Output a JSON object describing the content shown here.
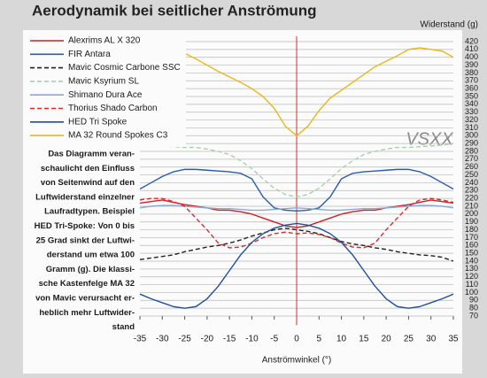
{
  "chart_data": {
    "type": "line",
    "title": "Aerodynamik bei seitlicher Anströmung",
    "y_label": "Widerstand (g)",
    "x_label": "Anströmwinkel (°)",
    "stamp": "VSXX",
    "annotation": [
      "Das Diagramm veran-",
      "schaulicht den Einfluss",
      "von Seitenwind auf den",
      "Luftwiderstand einzelner",
      "Laufradtypen. Beispiel",
      "HED Tri-Spoke: Von 0 bis",
      "25 Grad sinkt der Luftwi-",
      "derstand um etwa 100",
      "Gramm (g). Die klassi-",
      "sche Kastenfelge MA 32",
      "von Mavic verursacht er-",
      "heblich mehr Luftwider-",
      "stand"
    ],
    "x": [
      -35,
      -32.5,
      -30,
      -27.5,
      -25,
      -22.5,
      -20,
      -17.5,
      -15,
      -12.5,
      -10,
      -7.5,
      -5,
      -2.5,
      0,
      2.5,
      5,
      7.5,
      10,
      12.5,
      15,
      17.5,
      20,
      22.5,
      25,
      27.5,
      30,
      32.5,
      35
    ],
    "xlim": [
      -35,
      35
    ],
    "xticks": [
      -35,
      -30,
      -25,
      -20,
      -15,
      -10,
      -5,
      0,
      5,
      10,
      15,
      20,
      25,
      30,
      35
    ],
    "ylim": [
      70,
      420
    ],
    "yticks": [
      70,
      80,
      90,
      100,
      110,
      120,
      130,
      140,
      150,
      160,
      170,
      180,
      190,
      200,
      210,
      220,
      230,
      240,
      250,
      260,
      270,
      280,
      290,
      300,
      310,
      320,
      330,
      340,
      350,
      360,
      370,
      380,
      390,
      400,
      410,
      420
    ],
    "grid": true,
    "series": [
      {
        "name": "Alexrims AL X 320",
        "color": "#cc2222",
        "dashed": false,
        "values": [
          214,
          216,
          218,
          215,
          212,
          210,
          208,
          205,
          205,
          203,
          200,
          195,
          190,
          185,
          183,
          185,
          190,
          195,
          200,
          203,
          205,
          205,
          208,
          210,
          212,
          215,
          218,
          216,
          214
        ]
      },
      {
        "name": "FIR Antara",
        "color": "#2a5caa",
        "dashed": false,
        "values": [
          232,
          240,
          248,
          254,
          257,
          257,
          256,
          255,
          254,
          252,
          245,
          222,
          208,
          205,
          204,
          205,
          208,
          222,
          245,
          252,
          254,
          255,
          256,
          257,
          257,
          254,
          248,
          240,
          232
        ]
      },
      {
        "name": "Mavic Cosmic Carbone SSC",
        "color": "#222222",
        "dashed": true,
        "values": [
          142,
          144,
          146,
          148,
          152,
          155,
          158,
          160,
          163,
          167,
          172,
          176,
          180,
          182,
          180,
          178,
          175,
          170,
          165,
          162,
          160,
          157,
          155,
          152,
          150,
          148,
          147,
          145,
          140
        ]
      },
      {
        "name": "Mavic Ksyrium SL",
        "color": "#a8d0a8",
        "dashed": true,
        "values": [
          288,
          288,
          287,
          286,
          285,
          285,
          283,
          280,
          276,
          268,
          258,
          245,
          233,
          225,
          222,
          225,
          233,
          245,
          258,
          268,
          276,
          280,
          283,
          285,
          285,
          286,
          287,
          288,
          290
        ]
      },
      {
        "name": "Shimano Dura Ace",
        "color": "#8aa8d8",
        "dashed": false,
        "values": [
          208,
          210,
          211,
          211,
          210,
          209,
          208,
          207,
          207,
          206,
          205,
          205,
          206,
          207,
          208,
          207,
          206,
          205,
          205,
          206,
          207,
          207,
          208,
          209,
          210,
          211,
          211,
          210,
          208
        ]
      },
      {
        "name": "Thorius Shado Carbon",
        "color": "#d03030",
        "dashed": true,
        "values": [
          218,
          220,
          220,
          216,
          210,
          195,
          180,
          163,
          157,
          158,
          163,
          170,
          175,
          177,
          175,
          176,
          174,
          170,
          163,
          158,
          157,
          163,
          180,
          195,
          210,
          218,
          220,
          218,
          215
        ]
      },
      {
        "name": "HED Tri Spoke",
        "color": "#1f4fa0",
        "dashed": false,
        "values": [
          98,
          92,
          87,
          82,
          80,
          82,
          92,
          108,
          128,
          148,
          164,
          175,
          182,
          186,
          188,
          186,
          182,
          175,
          164,
          148,
          128,
          108,
          92,
          82,
          80,
          82,
          87,
          92,
          98
        ]
      },
      {
        "name": "MA 32 Round Spokes C3",
        "color": "#e8b818",
        "dashed": false,
        "values": [
          405,
          410,
          410,
          408,
          405,
          398,
          390,
          382,
          375,
          368,
          360,
          350,
          335,
          312,
          300,
          312,
          332,
          348,
          358,
          368,
          378,
          388,
          395,
          402,
          410,
          412,
          410,
          408,
          400
        ]
      }
    ]
  }
}
